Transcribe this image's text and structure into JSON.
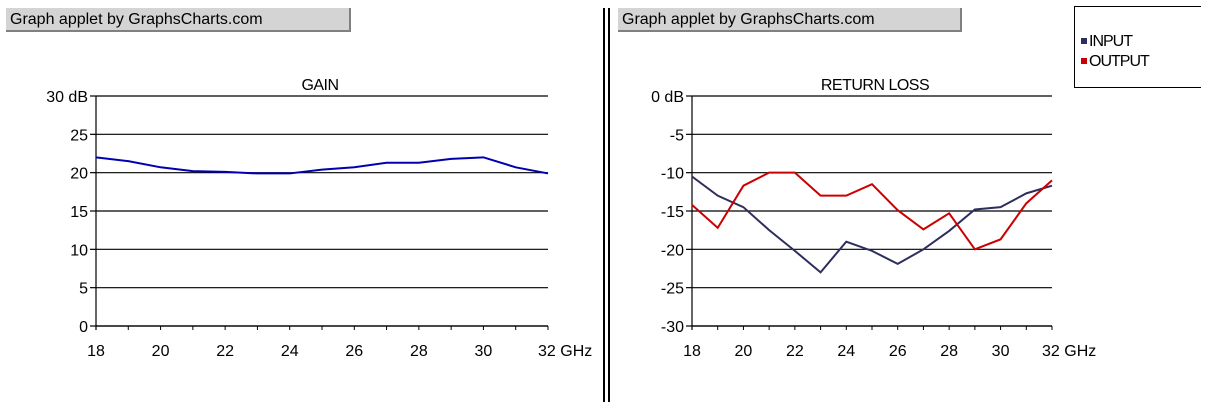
{
  "panels": {
    "left": {
      "credit": "Graph applet by GraphsCharts.com"
    },
    "right": {
      "credit": "Graph applet by GraphsCharts.com"
    }
  },
  "legend": {
    "items": [
      {
        "label": "INPUT",
        "color": "#2e2e5e"
      },
      {
        "label": "OUTPUT",
        "color": "#cc0000"
      }
    ]
  },
  "chart_data": [
    {
      "type": "line",
      "title": "GAIN",
      "x": [
        18,
        19,
        20,
        21,
        22,
        23,
        24,
        25,
        26,
        27,
        28,
        29,
        30,
        31,
        32
      ],
      "x_tick_labels": [
        "18",
        "20",
        "22",
        "24",
        "26",
        "28",
        "30",
        "32 GHz"
      ],
      "x_tick_values": [
        18,
        20,
        22,
        24,
        26,
        28,
        30,
        32
      ],
      "y_tick_labels": [
        "30 dB",
        "25",
        "20",
        "15",
        "10",
        "5",
        "0"
      ],
      "y_tick_values": [
        30,
        25,
        20,
        15,
        10,
        5,
        0
      ],
      "xlim": [
        18,
        32
      ],
      "ylim": [
        0,
        30
      ],
      "grid": true,
      "series": [
        {
          "color": "#0000b0",
          "values": [
            22,
            21.5,
            20.7,
            20.2,
            20.1,
            19.9,
            19.9,
            20.4,
            20.7,
            21.3,
            21.3,
            21.8,
            22,
            20.7,
            19.9
          ]
        }
      ]
    },
    {
      "type": "line",
      "title": "RETURN LOSS",
      "x": [
        18,
        19,
        20,
        21,
        22,
        23,
        24,
        25,
        26,
        27,
        28,
        29,
        30,
        31,
        32
      ],
      "x_tick_labels": [
        "18",
        "20",
        "22",
        "24",
        "26",
        "28",
        "30",
        "32 GHz"
      ],
      "x_tick_values": [
        18,
        20,
        22,
        24,
        26,
        28,
        30,
        32
      ],
      "y_tick_labels": [
        "0 dB",
        "-5",
        "-10",
        "-15",
        "-20",
        "-25",
        "-30"
      ],
      "y_tick_values": [
        0,
        -5,
        -10,
        -15,
        -20,
        -25,
        -30
      ],
      "xlim": [
        18,
        32
      ],
      "ylim": [
        -30,
        0
      ],
      "grid": true,
      "legend_position": "top-right",
      "series": [
        {
          "name": "INPUT",
          "color": "#2e2e5e",
          "values": [
            -10.5,
            -13,
            -14.5,
            -17.5,
            -20.2,
            -23,
            -19,
            -20.2,
            -21.9,
            -20,
            -17.6,
            -14.8,
            -14.5,
            -12.7,
            -11.7
          ]
        },
        {
          "name": "OUTPUT",
          "color": "#cc0000",
          "values": [
            -14.2,
            -17.2,
            -11.7,
            -10,
            -10,
            -13,
            -13,
            -11.5,
            -14.9,
            -17.4,
            -15.3,
            -20,
            -18.7,
            -14,
            -11
          ]
        }
      ]
    }
  ]
}
